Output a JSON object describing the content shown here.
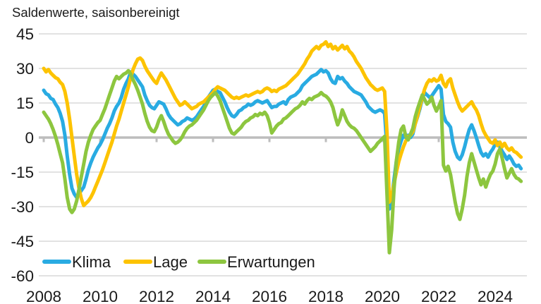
{
  "chart_data": {
    "type": "line",
    "title": "Saldenwerte, saisonbereinigt",
    "frequency": "monthly",
    "x_start": "2008-01",
    "x_end": "2024-12",
    "x_tick_labels": [
      "2008",
      "2010",
      "2012",
      "2014",
      "2016",
      "2018",
      "2020",
      "2022",
      "2024"
    ],
    "y_tick_labels": [
      "45",
      "30",
      "15",
      "0",
      "-15",
      "-30",
      "-45",
      "-60"
    ],
    "ylim": [
      -60,
      45
    ],
    "grid": "horizontal",
    "zero_line": true,
    "legend_position": "bottom-left-inside",
    "series": [
      {
        "name": "Klima",
        "color": "#29ABE2",
        "values": [
          20.5,
          19,
          18.5,
          17,
          16.5,
          14.5,
          13,
          10.5,
          7,
          1,
          -8,
          -16,
          -22,
          -24.5,
          -26,
          -24.5,
          -23,
          -21.5,
          -18,
          -14,
          -11,
          -8.5,
          -6.5,
          -4.5,
          -3,
          -1,
          1.5,
          4,
          6,
          8.5,
          11.5,
          13.5,
          15,
          17.5,
          21,
          23.5,
          25.5,
          28.5,
          27.5,
          26.5,
          25,
          23.5,
          22,
          18.5,
          16,
          14,
          13,
          12.5,
          14,
          15.5,
          15,
          14.5,
          12.5,
          10,
          8.5,
          7.5,
          6.5,
          5.5,
          6,
          7,
          7.5,
          8.5,
          8,
          7.5,
          8,
          9,
          10.5,
          12,
          13.5,
          15.5,
          17.5,
          19,
          20.5,
          21,
          20,
          19.5,
          17.5,
          15.5,
          13,
          11,
          9.5,
          9,
          10,
          11.5,
          12,
          13,
          13.5,
          14.5,
          14,
          14.5,
          15.5,
          16,
          15.5,
          15,
          15.5,
          16,
          14.5,
          13,
          13.5,
          13.5,
          14.5,
          15,
          15.5,
          14.5,
          16.5,
          17.5,
          18,
          18.5,
          19.5,
          20.5,
          22.5,
          23.5,
          24.5,
          25.5,
          26.5,
          27,
          27.5,
          28.5,
          29.5,
          28.5,
          29,
          28,
          25.5,
          24,
          23.5,
          26.5,
          25.5,
          26,
          24.5,
          23.5,
          22,
          21,
          20,
          19.5,
          19,
          18.5,
          17,
          15.5,
          13.5,
          12.5,
          11.5,
          11,
          11.5,
          12,
          11.5,
          10.5,
          -5,
          -31,
          -27,
          -18,
          -10,
          -5,
          -1.5,
          1,
          0,
          1,
          0,
          1.5,
          6,
          9,
          12.5,
          17,
          19.5,
          18.5,
          17.5,
          18,
          19.5,
          21,
          22.5,
          21,
          10,
          7,
          6,
          4.5,
          -2,
          -6,
          -8.5,
          -9.5,
          -7.5,
          -4,
          0,
          3.5,
          5.5,
          3,
          0,
          -3.5,
          -6.5,
          -8,
          -7,
          -8.5,
          -6.5,
          -5,
          -3,
          -2,
          -4,
          -6,
          -7.5,
          -9.5,
          -8,
          -9.5,
          -11.5,
          -12.5,
          -12,
          -13.5
        ]
      },
      {
        "name": "Lage",
        "color": "#FDC300",
        "values": [
          30,
          28.5,
          29.5,
          28,
          27,
          26,
          25.5,
          24,
          23,
          20,
          15,
          8,
          0,
          -8,
          -16,
          -22,
          -26.5,
          -29.5,
          -28.5,
          -27.5,
          -26,
          -24,
          -21.5,
          -19,
          -16.5,
          -14,
          -11,
          -8,
          -5,
          -2,
          1.5,
          5,
          8,
          11.5,
          15,
          18.5,
          22,
          26,
          29.5,
          32,
          34,
          34.5,
          33.5,
          31,
          29,
          27.5,
          26,
          24.5,
          23.5,
          26,
          28,
          26.5,
          25,
          23,
          21,
          19,
          17,
          15.5,
          14,
          14.5,
          15.5,
          14.5,
          13.5,
          12.5,
          13,
          13.5,
          14.5,
          15,
          15.5,
          16.5,
          17.5,
          18.5,
          19.5,
          21,
          22,
          21.5,
          21,
          20.5,
          19.5,
          18.5,
          17.5,
          17,
          17.5,
          17,
          17.5,
          18,
          18.5,
          18,
          18.5,
          19,
          19.5,
          20,
          19.5,
          20,
          21,
          21.5,
          21,
          20,
          20.5,
          20,
          21,
          21.5,
          22,
          22.5,
          23.5,
          24.5,
          25.5,
          26.5,
          27.5,
          29,
          30.5,
          32,
          34,
          35.5,
          37.5,
          38.5,
          39.5,
          38.5,
          40,
          40.5,
          41.5,
          39.5,
          40.5,
          38.5,
          39.5,
          38,
          39,
          40,
          38.5,
          39.5,
          37.5,
          36.5,
          35,
          33,
          31.5,
          30,
          28,
          26,
          24.5,
          23,
          22,
          21,
          20.5,
          21,
          21.5,
          20,
          2,
          -28,
          -25.5,
          -20,
          -15,
          -10.5,
          -7,
          -4,
          -1.5,
          0.5,
          1,
          2.5,
          6,
          9.5,
          13.5,
          17.5,
          21,
          23.5,
          25,
          24.5,
          25.5,
          24.5,
          25,
          27,
          23.5,
          22,
          24.5,
          25.5,
          21.5,
          18.5,
          15.5,
          13,
          11.5,
          12.5,
          13.5,
          14.5,
          15.5,
          13.5,
          12,
          9.5,
          6,
          3,
          1,
          -0.5,
          -2,
          -2.5,
          -1,
          -3.5,
          -2,
          -4,
          -2.5,
          -4.5,
          -5.5,
          -4.5,
          -6,
          -6.5,
          -7.5,
          -8.5
        ]
      },
      {
        "name": "Erwartungen",
        "color": "#8DC63F",
        "values": [
          11,
          9.5,
          8,
          6,
          3.5,
          0.5,
          -3,
          -7,
          -11,
          -18,
          -26,
          -31,
          -32.5,
          -31,
          -27.5,
          -22.5,
          -17,
          -11.5,
          -6,
          -2,
          1,
          3.5,
          5,
          6.5,
          7.5,
          10,
          12.5,
          15.5,
          18.5,
          21.5,
          24.5,
          26.5,
          25.5,
          26.5,
          27.5,
          28,
          29,
          27.5,
          25,
          23,
          20.5,
          17.5,
          14.5,
          10.5,
          7,
          4.5,
          3,
          2.5,
          4.5,
          7.5,
          9.5,
          7,
          4,
          1.5,
          0,
          -1.5,
          -2.5,
          -2,
          -1,
          0.5,
          2.5,
          4,
          5,
          5.5,
          6.5,
          7.5,
          9,
          10.5,
          12,
          14,
          16,
          17.5,
          18.5,
          19.5,
          18,
          16,
          13,
          10,
          7,
          4,
          2,
          1.5,
          2.5,
          3.5,
          4.5,
          6,
          7,
          7.5,
          8.5,
          9,
          10,
          9.5,
          10.5,
          10,
          11,
          9.5,
          6.5,
          2,
          3.5,
          5,
          6,
          6.5,
          8,
          8.5,
          9.5,
          10.5,
          11.5,
          12.5,
          13,
          14,
          15.5,
          14.5,
          16,
          17,
          16.5,
          17.5,
          18,
          18.5,
          19.5,
          18.5,
          18,
          17,
          15.5,
          13,
          9,
          5.5,
          8,
          12,
          9.5,
          7,
          5.5,
          4.5,
          4,
          3,
          1.5,
          0,
          -1.5,
          -3,
          -4.5,
          -6,
          -5,
          -4,
          -2.5,
          -1.5,
          -0.5,
          0.5,
          -25,
          -50,
          -40,
          -22,
          -10,
          -2,
          3.5,
          5,
          0.5,
          -1,
          1.5,
          4,
          9,
          12.5,
          15.5,
          18.5,
          16.5,
          14.5,
          15.5,
          17.5,
          14,
          11.5,
          13.5,
          16,
          -12,
          -14.5,
          -12.5,
          -16,
          -22,
          -28,
          -33,
          -35.5,
          -31,
          -25,
          -17,
          -11,
          -7,
          -10.5,
          -14,
          -17.5,
          -20.5,
          -18,
          -21.5,
          -18.5,
          -16,
          -14.5,
          -11.5,
          -7,
          -5,
          -9,
          -13.5,
          -17.5,
          -15.5,
          -13.5,
          -16,
          -17.5,
          -18,
          -19
        ]
      }
    ]
  }
}
